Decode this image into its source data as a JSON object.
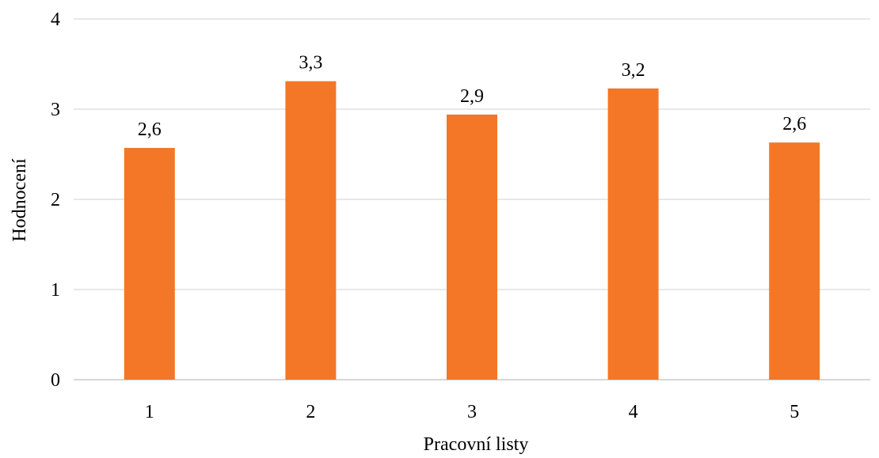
{
  "chart_data": {
    "type": "bar",
    "categories": [
      "1",
      "2",
      "3",
      "4",
      "5"
    ],
    "values": [
      2.57,
      3.31,
      2.94,
      3.23,
      2.63
    ],
    "data_labels": [
      "2,6",
      "3,3",
      "2,9",
      "3,2",
      "2,6"
    ],
    "title": "",
    "xlabel": "Pracovní listy",
    "ylabel": "Hodnocení",
    "ylim": [
      0,
      4
    ],
    "yticks": [
      "0",
      "1",
      "2",
      "3",
      "4"
    ],
    "grid": "horizontal",
    "legend": "none",
    "bar_color": "#F37726"
  }
}
